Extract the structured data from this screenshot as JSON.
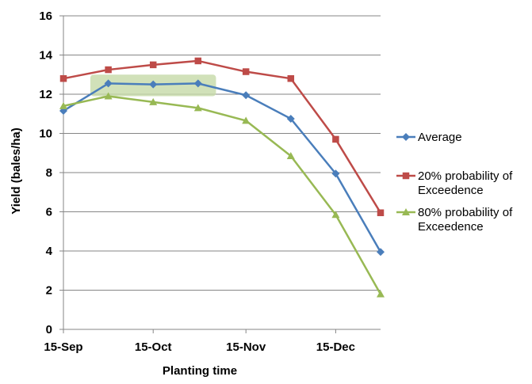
{
  "chart_data": {
    "type": "line",
    "xlabel": "Planting time",
    "ylabel": "Yield (bales/ha)",
    "x_tick_labels": [
      "15-Sep",
      "15-Oct",
      "15-Nov",
      "15-Dec"
    ],
    "x_tick_days": [
      0,
      30,
      61,
      91
    ],
    "x_days": [
      0,
      15,
      30,
      45,
      61,
      76,
      91,
      106
    ],
    "ylim": [
      0,
      16
    ],
    "y_ticks": [
      0,
      2,
      4,
      6,
      8,
      10,
      12,
      14,
      16
    ],
    "grid": true,
    "legend_position": "right",
    "highlight": {
      "x_days_range": [
        9,
        51
      ],
      "y_range": [
        11.9,
        13.0
      ],
      "color": "#c6d9a8"
    },
    "series": [
      {
        "name": "Average",
        "color": "#4a7ebb",
        "marker": "diamond",
        "values": [
          11.15,
          12.55,
          12.5,
          12.55,
          11.95,
          10.75,
          7.95,
          3.95
        ]
      },
      {
        "name": "20% probability of Exceedence",
        "legend_lines": [
          "20% probability of",
          "Exceedence"
        ],
        "color": "#be4b48",
        "marker": "square",
        "values": [
          12.8,
          13.25,
          13.5,
          13.7,
          13.15,
          12.8,
          9.7,
          5.95
        ]
      },
      {
        "name": "80% probability of Exceedence",
        "legend_lines": [
          "80% probability of",
          "Exceedence"
        ],
        "color": "#98b954",
        "marker": "triangle",
        "values": [
          11.4,
          11.9,
          11.6,
          11.3,
          10.65,
          8.85,
          5.85,
          1.8
        ]
      }
    ]
  }
}
